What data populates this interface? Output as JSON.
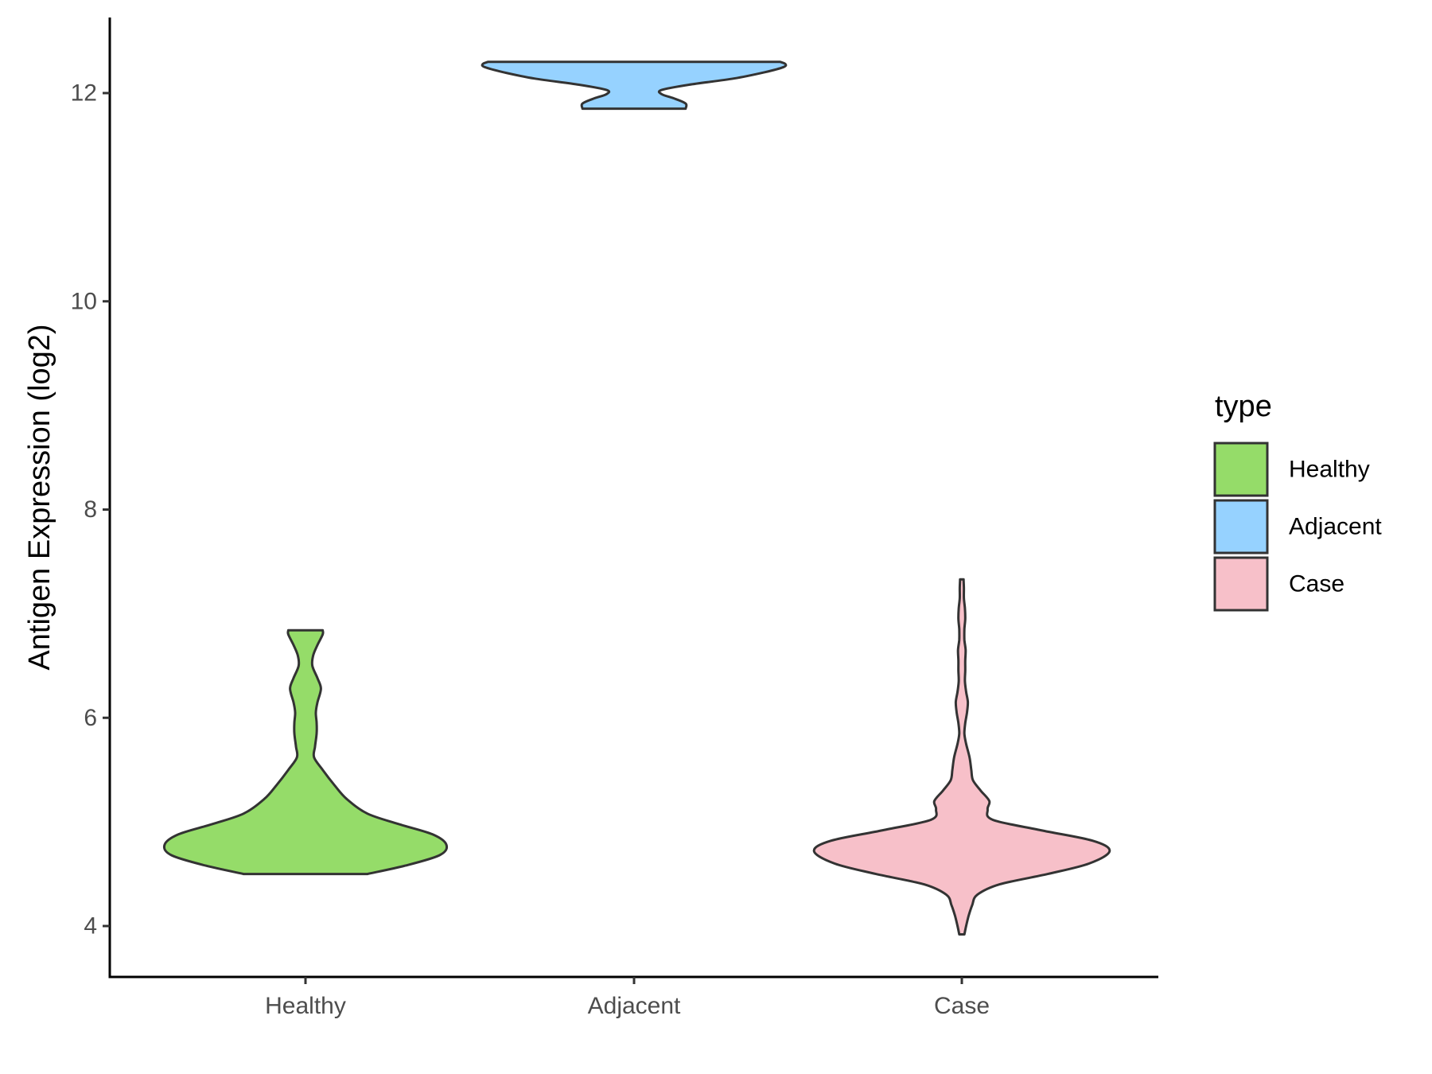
{
  "chart_data": {
    "type": "violin",
    "title": "",
    "xlabel": "",
    "ylabel": "Antigen Expression (log2)",
    "ylim": [
      3.55,
      12.75
    ],
    "yticks": [
      4,
      6,
      8,
      10,
      12
    ],
    "categories": [
      "Healthy",
      "Adjacent",
      "Case"
    ],
    "grid": false,
    "legend": {
      "title": "type",
      "position": "right",
      "entries": [
        "Healthy",
        "Adjacent",
        "Case"
      ]
    },
    "colors": {
      "Healthy": "#95dc69",
      "Adjacent": "#96d2ff",
      "Case": "#f7c0c9"
    },
    "series": [
      {
        "category": "Healthy",
        "profile": [
          [
            4.5,
            0.36
          ],
          [
            4.58,
            0.58
          ],
          [
            4.68,
            0.78
          ],
          [
            4.78,
            0.82
          ],
          [
            4.88,
            0.74
          ],
          [
            4.98,
            0.54
          ],
          [
            5.08,
            0.36
          ],
          [
            5.22,
            0.24
          ],
          [
            5.35,
            0.17
          ],
          [
            5.5,
            0.1
          ],
          [
            5.62,
            0.05
          ],
          [
            5.72,
            0.055
          ],
          [
            5.85,
            0.065
          ],
          [
            5.95,
            0.065
          ],
          [
            6.05,
            0.06
          ],
          [
            6.15,
            0.07
          ],
          [
            6.28,
            0.09
          ],
          [
            6.38,
            0.07
          ],
          [
            6.5,
            0.04
          ],
          [
            6.6,
            0.045
          ],
          [
            6.7,
            0.07
          ],
          [
            6.8,
            0.1
          ],
          [
            6.84,
            0.1
          ]
        ]
      },
      {
        "category": "Adjacent",
        "profile": [
          [
            11.85,
            0.3
          ],
          [
            11.9,
            0.3
          ],
          [
            11.95,
            0.23
          ],
          [
            11.99,
            0.16
          ],
          [
            12.03,
            0.16
          ],
          [
            12.08,
            0.32
          ],
          [
            12.14,
            0.58
          ],
          [
            12.2,
            0.76
          ],
          [
            12.25,
            0.87
          ],
          [
            12.28,
            0.88
          ],
          [
            12.3,
            0.85
          ]
        ]
      },
      {
        "category": "Case",
        "profile": [
          [
            3.92,
            0.015
          ],
          [
            4.0,
            0.025
          ],
          [
            4.1,
            0.04
          ],
          [
            4.2,
            0.06
          ],
          [
            4.3,
            0.09
          ],
          [
            4.4,
            0.22
          ],
          [
            4.5,
            0.5
          ],
          [
            4.6,
            0.74
          ],
          [
            4.72,
            0.86
          ],
          [
            4.82,
            0.76
          ],
          [
            4.92,
            0.46
          ],
          [
            5.02,
            0.18
          ],
          [
            5.12,
            0.15
          ],
          [
            5.2,
            0.16
          ],
          [
            5.3,
            0.11
          ],
          [
            5.4,
            0.065
          ],
          [
            5.5,
            0.055
          ],
          [
            5.62,
            0.045
          ],
          [
            5.75,
            0.025
          ],
          [
            5.85,
            0.015
          ],
          [
            5.95,
            0.02
          ],
          [
            6.05,
            0.03
          ],
          [
            6.15,
            0.035
          ],
          [
            6.25,
            0.025
          ],
          [
            6.35,
            0.018
          ],
          [
            6.45,
            0.02
          ],
          [
            6.55,
            0.02
          ],
          [
            6.65,
            0.022
          ],
          [
            6.75,
            0.015
          ],
          [
            6.85,
            0.015
          ],
          [
            6.95,
            0.02
          ],
          [
            7.05,
            0.018
          ],
          [
            7.15,
            0.012
          ],
          [
            7.25,
            0.012
          ],
          [
            7.33,
            0.01
          ]
        ]
      }
    ]
  }
}
